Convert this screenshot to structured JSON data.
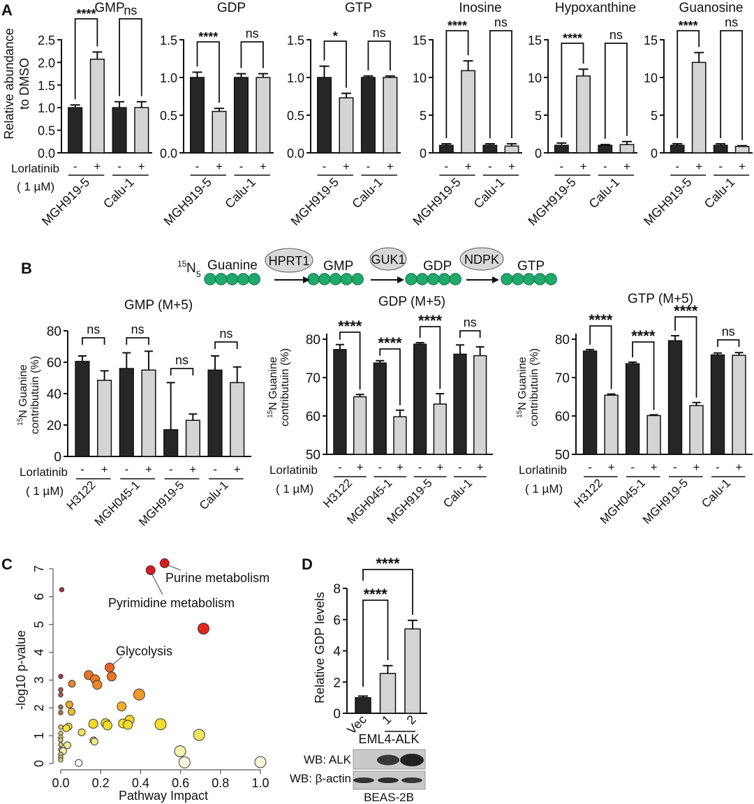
{
  "panel_labels": {
    "A": "A",
    "B": "B",
    "C": "C",
    "D": "D"
  },
  "panel_a": {
    "ylabel_line1": "Relative abundance",
    "ylabel_line2": "to DMSO",
    "treatment_label": "Lorlatinib",
    "dose_label": "( 1 µM)",
    "conditions": [
      "-",
      "+",
      "-",
      "+"
    ],
    "groups": [
      "MGH919-5",
      "Calu-1"
    ]
  },
  "panel_b": {
    "pathway": {
      "isotope_mass": "15",
      "isotope_symbol": "N",
      "isotope_count": "5",
      "nodes": [
        "Guanine",
        "GMP",
        "GDP",
        "GTP"
      ],
      "enzymes": [
        "HPRT1",
        "GUK1",
        "NDPK"
      ],
      "node_color": "#1faa6b",
      "enzyme_fill": "#d8d8d8"
    },
    "ylabel_line1_sup": "15",
    "ylabel_line1": "N Guanine",
    "ylabel_line2": "contributuin (%)",
    "treatment_label": "Lorlatinib",
    "dose_label": "( 1 µM)",
    "conditions": [
      "-",
      "+",
      "-",
      "+",
      "-",
      "+",
      "-",
      "+"
    ],
    "groups": [
      "H3122",
      "MGH045-1",
      "MGH919-5",
      "Calu-1"
    ]
  },
  "colors": {
    "untreated": "#262626",
    "treated": "#d4d4d4",
    "axis": "#111111"
  },
  "chart_data": [
    {
      "id": "A-GMP",
      "type": "bar",
      "title": "GMP",
      "ylim": [
        0,
        2.5
      ],
      "yticks": [
        "0.0",
        "0.5",
        "1.0",
        "1.5",
        "2.0",
        "2.5"
      ],
      "ytick_values": [
        0,
        0.5,
        1,
        1.5,
        2,
        2.5
      ],
      "categories": [
        "MGH919-5 -",
        "MGH919-5 +",
        "Calu-1 -",
        "Calu-1 +"
      ],
      "values": [
        1.0,
        2.07,
        1.0,
        1.0
      ],
      "errors": [
        0.06,
        0.16,
        0.13,
        0.13
      ],
      "significance": [
        {
          "pair": [
            0,
            1
          ],
          "label": "****"
        },
        {
          "pair": [
            2,
            3
          ],
          "label": "ns"
        }
      ]
    },
    {
      "id": "A-GDP",
      "type": "bar",
      "title": "GDP",
      "ylim": [
        0,
        1.5
      ],
      "yticks": [
        "0.0",
        "0.5",
        "1.0",
        "1.5"
      ],
      "ytick_values": [
        0,
        0.5,
        1,
        1.5
      ],
      "categories": [
        "MGH919-5 -",
        "MGH919-5 +",
        "Calu-1 -",
        "Calu-1 +"
      ],
      "values": [
        1.0,
        0.55,
        1.0,
        1.0
      ],
      "errors": [
        0.07,
        0.04,
        0.05,
        0.05
      ],
      "significance": [
        {
          "pair": [
            0,
            1
          ],
          "label": "****"
        },
        {
          "pair": [
            2,
            3
          ],
          "label": "ns"
        }
      ]
    },
    {
      "id": "A-GTP",
      "type": "bar",
      "title": "GTP",
      "ylim": [
        0,
        1.5
      ],
      "yticks": [
        "0.0",
        "0.5",
        "1.0",
        "1.5"
      ],
      "ytick_values": [
        0,
        0.5,
        1,
        1.5
      ],
      "categories": [
        "MGH919-5 -",
        "MGH919-5 +",
        "Calu-1 -",
        "Calu-1 +"
      ],
      "values": [
        1.0,
        0.73,
        1.0,
        1.0
      ],
      "errors": [
        0.15,
        0.06,
        0.02,
        0.02
      ],
      "significance": [
        {
          "pair": [
            0,
            1
          ],
          "label": "*"
        },
        {
          "pair": [
            2,
            3
          ],
          "label": "ns"
        }
      ]
    },
    {
      "id": "A-Inosine",
      "type": "bar",
      "title": "Inosine",
      "ylim": [
        0,
        15
      ],
      "yticks": [
        "0",
        "5",
        "10",
        "15"
      ],
      "ytick_values": [
        0,
        5,
        10,
        15
      ],
      "categories": [
        "MGH919-5 -",
        "MGH919-5 +",
        "Calu-1 -",
        "Calu-1 +"
      ],
      "values": [
        1.0,
        10.9,
        1.0,
        0.9
      ],
      "errors": [
        0.2,
        1.3,
        0.2,
        0.3
      ],
      "significance": [
        {
          "pair": [
            0,
            1
          ],
          "label": "****"
        },
        {
          "pair": [
            2,
            3
          ],
          "label": "ns"
        }
      ]
    },
    {
      "id": "A-Hypoxanthine",
      "type": "bar",
      "title": "Hypoxanthine",
      "ylim": [
        0,
        15
      ],
      "yticks": [
        "0",
        "5",
        "10",
        "15"
      ],
      "ytick_values": [
        0,
        5,
        10,
        15
      ],
      "categories": [
        "MGH919-5 -",
        "MGH919-5 +",
        "Calu-1 -",
        "Calu-1 +"
      ],
      "values": [
        1.0,
        10.2,
        1.0,
        1.1
      ],
      "errors": [
        0.3,
        0.9,
        0.1,
        0.4
      ],
      "significance": [
        {
          "pair": [
            0,
            1
          ],
          "label": "****"
        },
        {
          "pair": [
            2,
            3
          ],
          "label": "ns"
        }
      ]
    },
    {
      "id": "A-Guanosine",
      "type": "bar",
      "title": "Guanosine",
      "ylim": [
        0,
        15
      ],
      "yticks": [
        "0",
        "5",
        "10",
        "15"
      ],
      "ytick_values": [
        0,
        5,
        10,
        15
      ],
      "categories": [
        "MGH919-5 -",
        "MGH919-5 +",
        "Calu-1 -",
        "Calu-1 +"
      ],
      "values": [
        1.0,
        12.0,
        1.0,
        0.85
      ],
      "errors": [
        0.2,
        1.3,
        0.2,
        0.1
      ],
      "significance": [
        {
          "pair": [
            0,
            1
          ],
          "label": "****"
        },
        {
          "pair": [
            2,
            3
          ],
          "label": "ns"
        }
      ]
    },
    {
      "id": "B-GMP",
      "type": "bar",
      "title": "GMP (M+5)",
      "ylim": [
        0,
        80
      ],
      "yticks": [
        "0",
        "20",
        "40",
        "60",
        "80"
      ],
      "ytick_values": [
        0,
        20,
        40,
        60,
        80
      ],
      "categories": [
        "H3122 -",
        "H3122 +",
        "MGH045-1 -",
        "MGH045-1 +",
        "MGH919-5 -",
        "MGH919-5 +",
        "Calu-1 -",
        "Calu-1 +"
      ],
      "values": [
        60.5,
        48.5,
        56,
        55,
        17,
        23,
        55,
        47
      ],
      "errors": [
        3.5,
        6,
        10,
        12,
        30,
        4,
        9,
        10
      ],
      "significance": [
        {
          "pair": [
            0,
            1
          ],
          "label": "ns"
        },
        {
          "pair": [
            2,
            3
          ],
          "label": "ns"
        },
        {
          "pair": [
            4,
            5
          ],
          "label": "ns"
        },
        {
          "pair": [
            6,
            7
          ],
          "label": "ns"
        }
      ]
    },
    {
      "id": "B-GDP",
      "type": "bar",
      "title": "GDP (M+5)",
      "ylim": [
        50,
        80
      ],
      "yticks": [
        "50",
        "60",
        "70",
        "80"
      ],
      "ytick_values": [
        50,
        60,
        70,
        80
      ],
      "categories": [
        "H3122 -",
        "H3122 +",
        "MGH045-1 -",
        "MGH045-1 +",
        "MGH919-5 -",
        "MGH919-5 +",
        "Calu-1 -",
        "Calu-1 +"
      ],
      "values": [
        77.3,
        65,
        73.8,
        59.8,
        78.7,
        63.1,
        76.1,
        75.7
      ],
      "errors": [
        1.3,
        0.6,
        0.6,
        1.7,
        0.4,
        2.7,
        2.4,
        2.3
      ],
      "significance": [
        {
          "pair": [
            0,
            1
          ],
          "label": "****"
        },
        {
          "pair": [
            2,
            3
          ],
          "label": "****"
        },
        {
          "pair": [
            4,
            5
          ],
          "label": "****"
        },
        {
          "pair": [
            6,
            7
          ],
          "label": "ns"
        }
      ]
    },
    {
      "id": "B-GTP",
      "type": "bar",
      "title": "GTP (M+5)",
      "ylim": [
        50,
        80
      ],
      "yticks": [
        "50",
        "60",
        "70",
        "80"
      ],
      "ytick_values": [
        50,
        60,
        70,
        80
      ],
      "categories": [
        "H3122 -",
        "H3122 +",
        "MGH045-1 -",
        "MGH045-1 +",
        "MGH919-5 -",
        "MGH919-5 +",
        "Calu-1 -",
        "Calu-1 +"
      ],
      "values": [
        76.9,
        65.4,
        73.6,
        60.1,
        79.6,
        62.7,
        75.9,
        75.8
      ],
      "errors": [
        0.4,
        0.3,
        0.4,
        0.2,
        1.3,
        0.8,
        0.5,
        0.7
      ],
      "significance": [
        {
          "pair": [
            0,
            1
          ],
          "label": "****"
        },
        {
          "pair": [
            2,
            3
          ],
          "label": "****"
        },
        {
          "pair": [
            4,
            5
          ],
          "label": "****"
        },
        {
          "pair": [
            6,
            7
          ],
          "label": "ns"
        }
      ]
    },
    {
      "id": "C",
      "type": "scatter",
      "title": "",
      "xlabel": "Pathway Impact",
      "ylabel": "-log10 p-value",
      "xlim": [
        0,
        1.0
      ],
      "ylim": [
        0,
        7
      ],
      "xticks": [
        "0.0",
        "0.2",
        "0.4",
        "0.6",
        "0.8",
        "1.0"
      ],
      "xtick_values": [
        0,
        0.2,
        0.4,
        0.6,
        0.8,
        1.0
      ],
      "yticks": [
        "0",
        "1",
        "2",
        "3",
        "4",
        "5",
        "6",
        "7"
      ],
      "ytick_values": [
        0,
        1,
        2,
        3,
        4,
        5,
        6,
        7
      ],
      "color_scale": "yellow-to-red by -log10 p-value",
      "points": [
        {
          "x": 0.52,
          "y": 7.2,
          "size": 3,
          "label": "Purine metabolism"
        },
        {
          "x": 0.45,
          "y": 6.95,
          "size": 3,
          "label": "Pyrimidine metabolism"
        },
        {
          "x": 0.005,
          "y": 6.25,
          "size": 1
        },
        {
          "x": 0.715,
          "y": 4.85,
          "size": 4
        },
        {
          "x": 0.245,
          "y": 3.45,
          "size": 3,
          "label": "Glycolysis"
        },
        {
          "x": 0.255,
          "y": 3.13,
          "size": 3
        },
        {
          "x": 0.14,
          "y": 3.18,
          "size": 3
        },
        {
          "x": 0.172,
          "y": 3.03,
          "size": 3
        },
        {
          "x": 0.183,
          "y": 2.83,
          "size": 3
        },
        {
          "x": 0.056,
          "y": 2.87,
          "size": 2
        },
        {
          "x": 0.0,
          "y": 3.13,
          "size": 1
        },
        {
          "x": 0.0,
          "y": 2.65,
          "size": 1
        },
        {
          "x": 0.0,
          "y": 2.47,
          "size": 1
        },
        {
          "x": 0.393,
          "y": 2.48,
          "size": 4
        },
        {
          "x": 0.305,
          "y": 2.05,
          "size": 3
        },
        {
          "x": 0.043,
          "y": 2.12,
          "size": 2
        },
        {
          "x": 0.054,
          "y": 1.86,
          "size": 2
        },
        {
          "x": 0.0,
          "y": 2.03,
          "size": 1
        },
        {
          "x": 0.0,
          "y": 1.83,
          "size": 1
        },
        {
          "x": 0.163,
          "y": 1.43,
          "size": 3
        },
        {
          "x": 0.225,
          "y": 1.45,
          "size": 3
        },
        {
          "x": 0.234,
          "y": 1.37,
          "size": 3
        },
        {
          "x": 0.312,
          "y": 1.44,
          "size": 3
        },
        {
          "x": 0.345,
          "y": 1.57,
          "size": 3
        },
        {
          "x": 0.336,
          "y": 1.39,
          "size": 3
        },
        {
          "x": 0.5,
          "y": 1.41,
          "size": 4
        },
        {
          "x": 0.039,
          "y": 1.33,
          "size": 2
        },
        {
          "x": 0.028,
          "y": 1.27,
          "size": 2
        },
        {
          "x": 0.0,
          "y": 1.31,
          "size": 1
        },
        {
          "x": 0.105,
          "y": 1.12,
          "size": 2
        },
        {
          "x": 0.0,
          "y": 1.09,
          "size": 1
        },
        {
          "x": 0.0,
          "y": 0.95,
          "size": 1
        },
        {
          "x": 0.0,
          "y": 0.85,
          "size": 1
        },
        {
          "x": 0.164,
          "y": 0.83,
          "size": 2
        },
        {
          "x": 0.169,
          "y": 0.79,
          "size": 2
        },
        {
          "x": 0.693,
          "y": 1.03,
          "size": 4
        },
        {
          "x": 0.0,
          "y": 0.68,
          "size": 1
        },
        {
          "x": 0.033,
          "y": 0.66,
          "size": 2
        },
        {
          "x": 0.0,
          "y": 0.5,
          "size": 1
        },
        {
          "x": 0.012,
          "y": 0.45,
          "size": 2
        },
        {
          "x": 0.0,
          "y": 0.33,
          "size": 1
        },
        {
          "x": 0.0,
          "y": 0.22,
          "size": 1
        },
        {
          "x": 0.0,
          "y": 0.13,
          "size": 1
        },
        {
          "x": 0.598,
          "y": 0.44,
          "size": 4
        },
        {
          "x": 0.09,
          "y": 0.02,
          "size": 2
        },
        {
          "x": 0.62,
          "y": 0.04,
          "size": 4
        },
        {
          "x": 1.0,
          "y": 0.05,
          "size": 4
        }
      ]
    },
    {
      "id": "D",
      "type": "bar",
      "title": "",
      "ylabel": "Relative GDP levels",
      "ylim": [
        0,
        8
      ],
      "yticks": [
        "0",
        "2",
        "4",
        "6",
        "8"
      ],
      "ytick_values": [
        0,
        2,
        4,
        6,
        8
      ],
      "categories": [
        "Vec",
        "1",
        "2"
      ],
      "group_label": "EML4-ALK",
      "values": [
        1.0,
        2.55,
        5.4
      ],
      "errors": [
        0.1,
        0.5,
        0.55
      ],
      "significance": [
        {
          "pair": [
            0,
            1
          ],
          "label": "****"
        },
        {
          "pair": [
            0,
            2
          ],
          "label": "****"
        }
      ]
    }
  ],
  "panel_d": {
    "blot_rows": [
      "WB: ALK",
      "WB: β-actin"
    ],
    "cell_line": "BEAS-2B",
    "alk_band_intensity": [
      0,
      0.7,
      1.0
    ],
    "actin_band_intensity": [
      0.85,
      0.9,
      0.8
    ]
  }
}
